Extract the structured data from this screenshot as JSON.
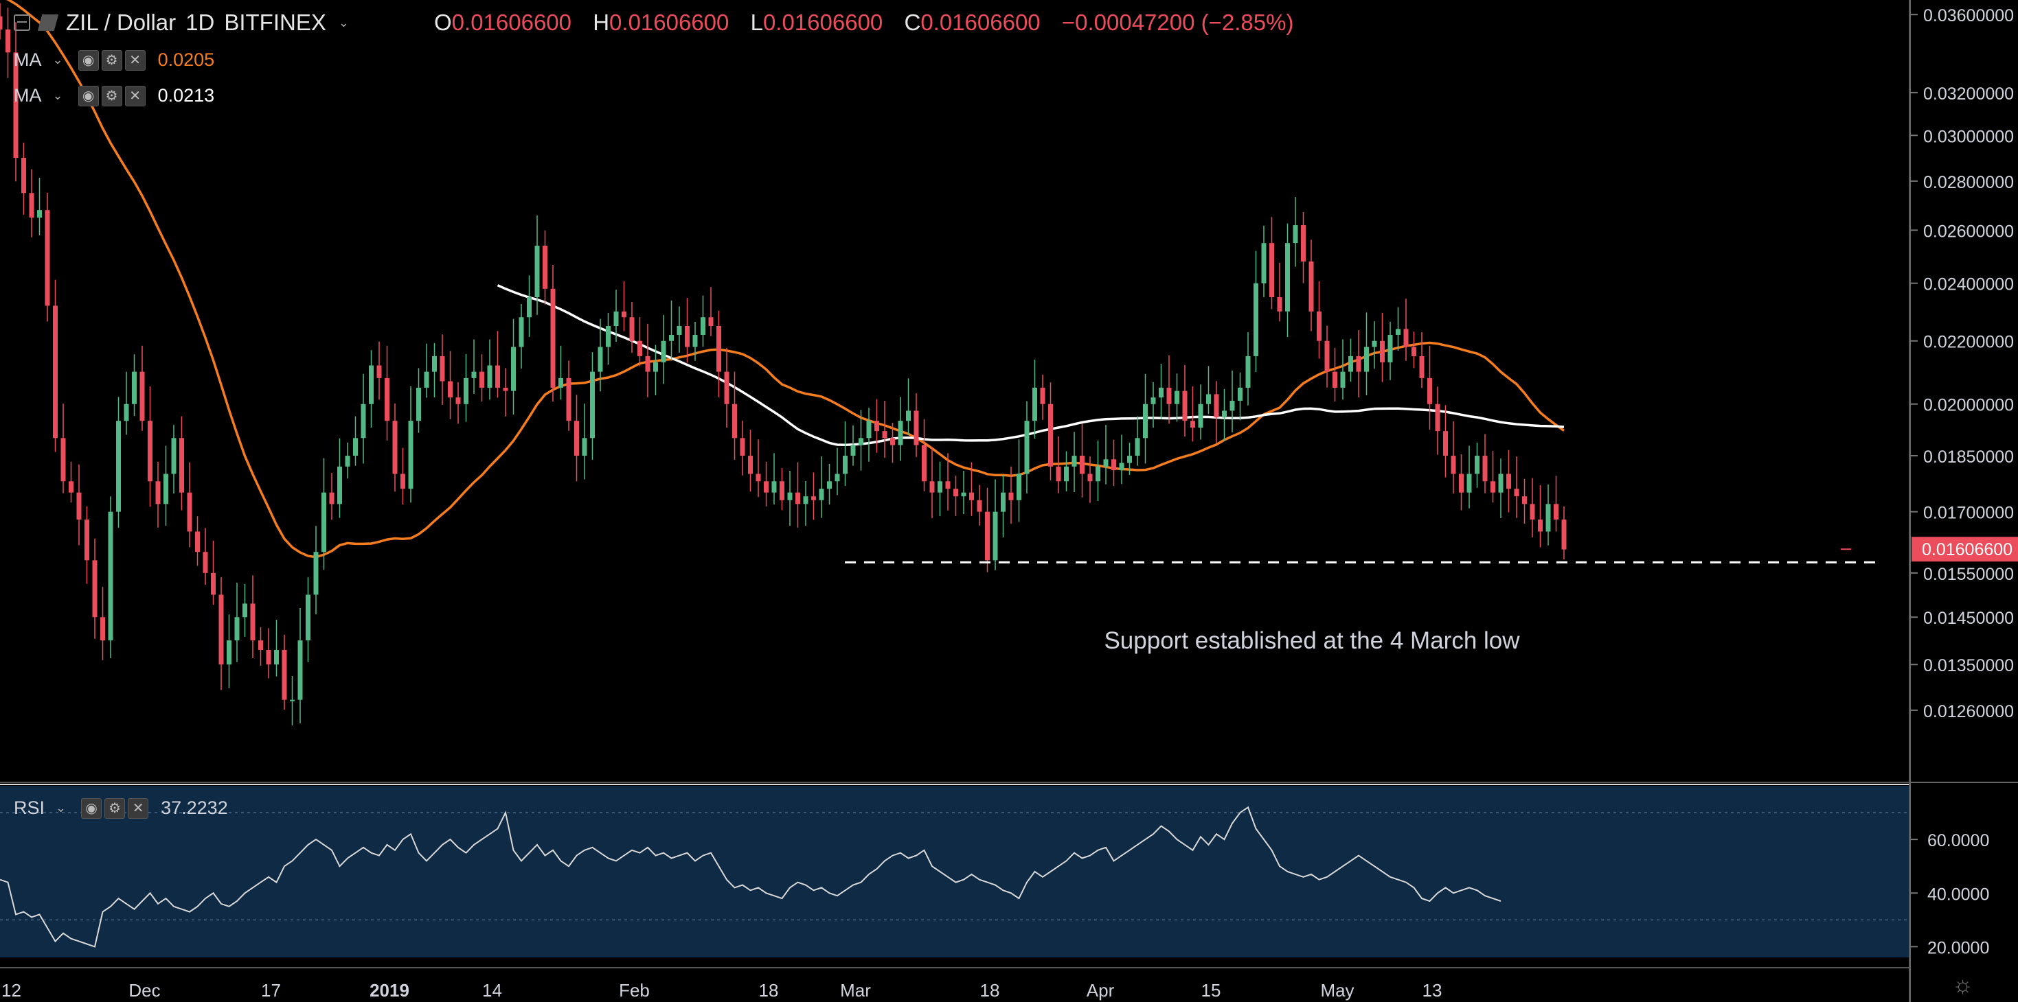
{
  "header": {
    "symbol": "ZIL / Dollar",
    "interval": "1D",
    "exchange": "BITFINEX",
    "open_label": "O",
    "open": "0.01606600",
    "high_label": "H",
    "high": "0.01606600",
    "low_label": "L",
    "low": "0.01606600",
    "close_label": "C",
    "close": "0.01606600",
    "change": "−0.00047200 (−2.85%)"
  },
  "indicators": [
    {
      "name": "MA",
      "value": "0.0205",
      "color": "#f57c1f"
    },
    {
      "name": "MA",
      "value": "0.0213",
      "color": "#ffffff"
    }
  ],
  "rsi_panel": {
    "name": "RSI",
    "value": "37.2232"
  },
  "annotation": "Support established at the 4 March low",
  "current_price_label": "0.01606600",
  "colors": {
    "up": "#53b987",
    "down": "#eb4d5c",
    "ma_fast": "#f57c1f",
    "ma_slow": "#ffffff",
    "rsi_band": "#0f2a44",
    "price_tag": "#eb4d5c"
  },
  "chart_data": [
    {
      "type": "candlestick",
      "title": "ZIL / Dollar 1D BITFINEX",
      "x_ticks": [
        "12",
        "Dec",
        "17",
        "2019",
        "14",
        "Feb",
        "18",
        "Mar",
        "18",
        "Apr",
        "15",
        "May",
        "13"
      ],
      "y_ticks": [
        "0.03600000",
        "0.03200000",
        "0.03000000",
        "0.02800000",
        "0.02600000",
        "0.02400000",
        "0.02200000",
        "0.02000000",
        "0.01850000",
        "0.01700000",
        "0.01550000",
        "0.01450000",
        "0.01350000",
        "0.01260000"
      ],
      "y_scale": "log",
      "ylim": [
        0.0113,
        0.0368
      ],
      "date_range": [
        "2018-11-12",
        "2019-05-13"
      ],
      "support_level": 0.01575,
      "series": [
        {
          "name": "MA",
          "value": 0.0205
        },
        {
          "name": "MA",
          "value": 0.0213
        }
      ]
    },
    {
      "type": "line",
      "title": "RSI",
      "y_ticks": [
        "60.0000",
        "40.0000",
        "20.0000"
      ],
      "ylim": [
        16,
        80
      ],
      "band": [
        30,
        70
      ],
      "last_value": 37.2232,
      "values": [
        45,
        44,
        32,
        33,
        31,
        32,
        27,
        22,
        25,
        23,
        22,
        21,
        20,
        33,
        35,
        38,
        36,
        34,
        37,
        40,
        36,
        38,
        35,
        34,
        33,
        35,
        38,
        40,
        36,
        35,
        37,
        40,
        42,
        44,
        46,
        44,
        50,
        52,
        55,
        58,
        60,
        58,
        56,
        50,
        53,
        55,
        57,
        55,
        54,
        58,
        56,
        60,
        62,
        55,
        52,
        55,
        58,
        60,
        57,
        55,
        58,
        60,
        62,
        64,
        70,
        56,
        52,
        55,
        58,
        54,
        56,
        52,
        50,
        54,
        56,
        57,
        55,
        53,
        52,
        54,
        56,
        55,
        57,
        54,
        55,
        53,
        54,
        55,
        52,
        54,
        55,
        50,
        45,
        42,
        43,
        41,
        42,
        40,
        39,
        38,
        42,
        44,
        43,
        41,
        42,
        40,
        39,
        41,
        43,
        44,
        47,
        49,
        52,
        54,
        55,
        53,
        54,
        56,
        50,
        48,
        46,
        44,
        45,
        47,
        45,
        44,
        43,
        41,
        40,
        38,
        44,
        48,
        46,
        48,
        50,
        52,
        55,
        53,
        54,
        56,
        57,
        52,
        54,
        56,
        58,
        60,
        62,
        65,
        63,
        60,
        58,
        56,
        61,
        58,
        62,
        60,
        66,
        70,
        72,
        64,
        60,
        56,
        50,
        48,
        47,
        46,
        47,
        45,
        46,
        48,
        50,
        52,
        54,
        52,
        50,
        48,
        46,
        45,
        44,
        42,
        38,
        37,
        40,
        42,
        40,
        41,
        42,
        41,
        39,
        38,
        37
      ]
    }
  ]
}
